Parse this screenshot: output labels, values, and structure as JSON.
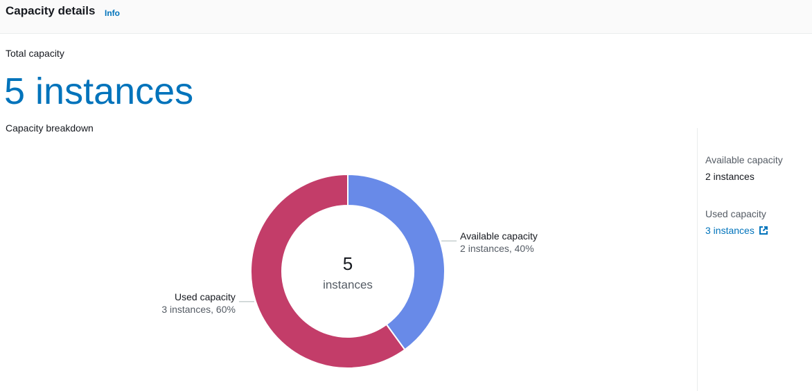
{
  "header": {
    "title": "Capacity details",
    "info_label": "Info"
  },
  "total": {
    "label": "Total capacity",
    "value": "5 instances"
  },
  "breakdown": {
    "label": "Capacity breakdown"
  },
  "side": {
    "available_label": "Available capacity",
    "available_value": "2 instances",
    "used_label": "Used capacity",
    "used_value": "3 instances",
    "external_icon": "external-link-icon"
  },
  "chart_data": {
    "type": "pie",
    "variant": "donut",
    "center_value": "5",
    "center_unit": "instances",
    "series": [
      {
        "name": "Available capacity",
        "value": 2,
        "detail": "2 instances, 40%",
        "color": "#688ae8"
      },
      {
        "name": "Used capacity",
        "value": 3,
        "detail": "3 instances, 60%",
        "color": "#c33d69"
      }
    ]
  }
}
